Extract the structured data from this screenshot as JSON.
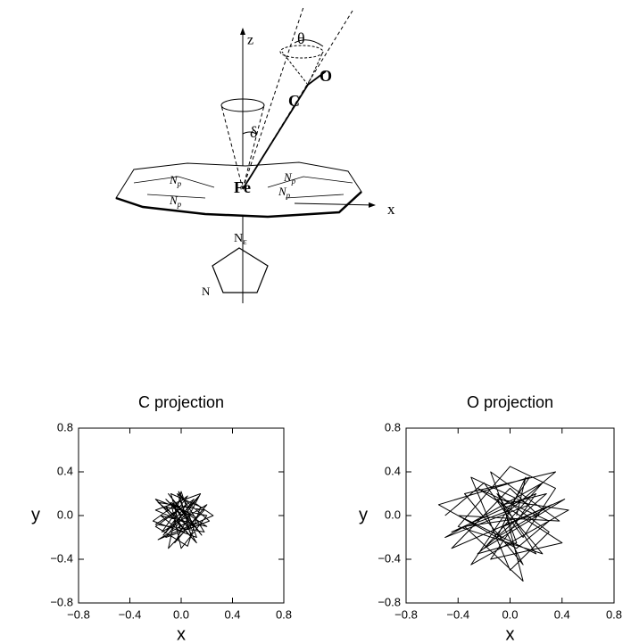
{
  "diagram": {
    "labels": {
      "z": "z",
      "theta": "θ",
      "o": "O",
      "c": "C",
      "delta": "δ",
      "fe": "Fe",
      "np1": {
        "main": "N",
        "sub": "p"
      },
      "np2": {
        "main": "N",
        "sub": "p"
      },
      "np3": {
        "main": "N",
        "sub": "p"
      },
      "np4": {
        "main": "N",
        "sub": "p"
      },
      "x": "x",
      "ne": {
        "main": "N",
        "sub": "ε"
      },
      "n": "N"
    }
  },
  "chart_data": [
    {
      "type": "line",
      "title": "C projection",
      "xlabel": "x",
      "ylabel": "y",
      "color": "#000000",
      "xlim": [
        -0.8,
        0.8
      ],
      "ylim": [
        -0.8,
        0.8
      ],
      "xticks": [
        {
          "value": -0.8,
          "label": "−0.8"
        },
        {
          "value": -0.4,
          "label": "−0.4"
        },
        {
          "value": 0,
          "label": "0.0"
        },
        0.4,
        0.8
      ],
      "yticks": [
        {
          "value": -0.8,
          "label": "−0.8"
        },
        {
          "value": -0.4,
          "label": "−0.4"
        },
        {
          "value": 0,
          "label": "0.0"
        },
        0.4,
        0.8
      ],
      "x": [
        0.0,
        -0.12,
        0.1,
        -0.2,
        0.15,
        -0.05,
        0.2,
        -0.15,
        0.05,
        -0.22,
        0.12,
        0.0,
        -0.1,
        0.18,
        -0.18,
        0.08,
        -0.03,
        0.22,
        -0.12,
        0.1,
        -0.2,
        0.05,
        0.15,
        -0.08,
        0.0,
        -0.16,
        0.2,
        -0.06,
        0.12,
        -0.2,
        0.02,
        0.16,
        -0.1,
        0.06,
        -0.18,
        0.25,
        0.1,
        -0.04,
        0.14,
        -0.14,
        0.04,
        -0.2,
        0.18,
        -0.02,
        0.08,
        -0.12,
        0.2,
        0.0,
        -0.08,
        0.12
      ],
      "values": [
        0.0,
        0.15,
        -0.1,
        0.05,
        0.2,
        -0.25,
        0.1,
        -0.15,
        0.18,
        -0.05,
        -0.2,
        0.22,
        -0.3,
        0.05,
        0.12,
        -0.12,
        0.2,
        -0.05,
        -0.2,
        0.15,
        -0.1,
        -0.28,
        0.08,
        0.2,
        -0.15,
        0.0,
        -0.1,
        0.1,
        -0.25,
        0.15,
        0.05,
        -0.18,
        0.2,
        -0.05,
        -0.22,
        0.0,
        0.12,
        -0.1,
        0.18,
        -0.18,
        0.1,
        -0.08,
        -0.15,
        0.22,
        -0.2,
        0.08,
        0.0,
        -0.3,
        0.12,
        -0.02
      ]
    },
    {
      "type": "line",
      "title": "O projection",
      "xlabel": "x",
      "ylabel": "y",
      "color": "#000000",
      "xlim": [
        -0.8,
        0.8
      ],
      "ylim": [
        -0.8,
        0.8
      ],
      "xticks": [
        {
          "value": -0.8,
          "label": "−0.8"
        },
        {
          "value": -0.4,
          "label": "−0.4"
        },
        {
          "value": 0,
          "label": "0.0"
        },
        0.4,
        0.8
      ],
      "yticks": [
        {
          "value": -0.8,
          "label": "−0.8"
        },
        {
          "value": -0.4,
          "label": "−0.4"
        },
        {
          "value": 0,
          "label": "0.0"
        },
        0.4,
        0.8
      ],
      "x": [
        -0.5,
        -0.2,
        0.1,
        0.35,
        0.0,
        -0.4,
        0.25,
        -0.1,
        0.45,
        -0.3,
        0.15,
        -0.55,
        0.05,
        0.3,
        -0.25,
        0.4,
        -0.15,
        0.2,
        -0.45,
        0.0,
        0.35,
        -0.35,
        0.1,
        -0.05,
        0.42,
        -0.2,
        0.25,
        -0.5,
        0.15,
        -0.3,
        0.0,
        0.3,
        -0.1,
        0.2,
        -0.4,
        0.38,
        -0.15,
        0.05,
        -0.25,
        0.28,
        -0.05,
        0.1,
        -0.35,
        0.22,
        0.0,
        -0.45,
        0.32,
        -0.1,
        0.12,
        0.05
      ],
      "values": [
        0.0,
        0.3,
        -0.2,
        0.25,
        0.45,
        -0.1,
        -0.35,
        0.15,
        0.05,
        -0.45,
        0.35,
        0.1,
        -0.3,
        -0.05,
        0.25,
        -0.25,
        -0.4,
        0.2,
        -0.15,
        0.05,
        0.4,
        0.2,
        -0.45,
        -0.1,
        0.15,
        -0.3,
        0.3,
        -0.2,
        0.1,
        0.35,
        -0.5,
        -0.15,
        0.2,
        -0.35,
        0.0,
        -0.05,
        0.4,
        -0.25,
        -0.35,
        0.2,
        0.1,
        -0.6,
        -0.1,
        0.0,
        0.25,
        -0.3,
        0.1,
        -0.2,
        0.35,
        0.0
      ]
    }
  ]
}
